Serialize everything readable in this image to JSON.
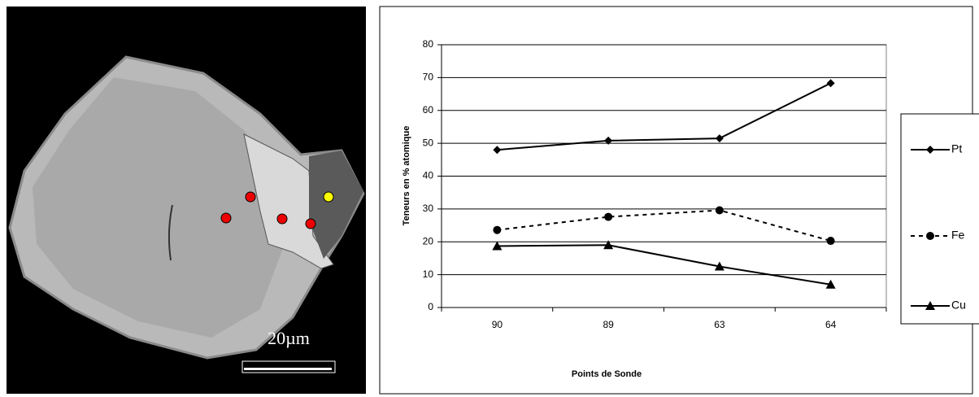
{
  "image_scale_label": "20µm",
  "chart_data": {
    "type": "line",
    "x_label": "Points de Sonde",
    "y_label": "Teneurs en % atomique",
    "categories": [
      "90",
      "89",
      "63",
      "64"
    ],
    "series": [
      {
        "name": "Pt",
        "color": "#000000",
        "marker": "diamond",
        "dashed": false,
        "values": [
          48,
          50.8,
          51.5,
          68.3
        ]
      },
      {
        "name": "Fe",
        "color": "#000000",
        "marker": "circle",
        "dashed": true,
        "values": [
          23.6,
          27.6,
          29.6,
          20.3
        ]
      },
      {
        "name": "Cu",
        "color": "#000000",
        "marker": "triangle",
        "dashed": false,
        "values": [
          18.7,
          19,
          12.5,
          7
        ]
      }
    ],
    "ylim": [
      0,
      80
    ],
    "yticks": [
      0,
      10,
      20,
      30,
      40,
      50,
      60,
      70,
      80
    ],
    "grid": true
  }
}
